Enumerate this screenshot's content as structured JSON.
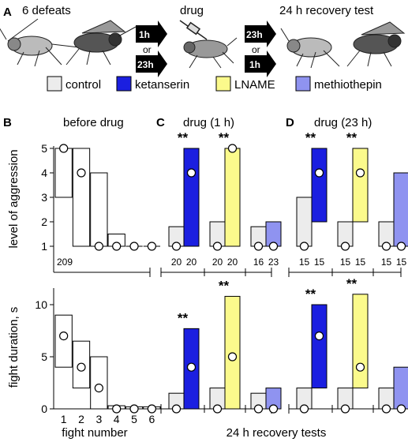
{
  "panel_a": {
    "letter": "A",
    "step1": "6 defeats",
    "step2": "drug",
    "step3": "24 h recovery test",
    "arrow1_top": "1h",
    "arrow1_bottom": "23h",
    "arrow2_top": "23h",
    "arrow2_bottom": "1h",
    "or": "or"
  },
  "legend": [
    {
      "label": "control",
      "color": "#ececec"
    },
    {
      "label": "ketanserin",
      "color": "#1b1fe0"
    },
    {
      "label": "LNAME",
      "color": "#fbfa8c"
    },
    {
      "label": "methiothepin",
      "color": "#8f93f0"
    }
  ],
  "panel_b": {
    "letter": "B",
    "title": "before drug",
    "n_label": "209"
  },
  "panel_c": {
    "letter": "C",
    "title": "drug (1 h)"
  },
  "panel_d": {
    "letter": "D",
    "title": "drug (23 h)"
  },
  "xlabel_b": "fight number",
  "xlabel_cd": "24 h recovery tests",
  "stars": "**",
  "chart_data": [
    {
      "panel": "B-top",
      "type": "bar",
      "ylabel": "level of aggression",
      "ylim": [
        0,
        5
      ],
      "categories": [
        "1",
        "2",
        "3",
        "4",
        "5",
        "6"
      ],
      "iqr_low": [
        3,
        1,
        1,
        1,
        1,
        1
      ],
      "iqr_high": [
        5,
        5,
        4,
        1.5,
        1,
        1
      ],
      "median": [
        5,
        4,
        1,
        1,
        1,
        1
      ]
    },
    {
      "panel": "B-bottom",
      "type": "bar",
      "ylabel": "fight duration, s",
      "xlabel": "fight number",
      "ylim": [
        0,
        12
      ],
      "categories": [
        "1",
        "2",
        "3",
        "4",
        "5",
        "6"
      ],
      "yticks": [
        0,
        5,
        10
      ],
      "iqr_low": [
        4,
        2,
        0,
        0,
        0,
        0
      ],
      "iqr_high": [
        9,
        6.5,
        5,
        0.3,
        0.2,
        0.2
      ],
      "median": [
        7,
        4,
        2,
        0,
        0,
        0
      ]
    },
    {
      "panel": "C-top",
      "type": "bar",
      "ylim": [
        0,
        5
      ],
      "groups": [
        {
          "n": [
            "20",
            "20"
          ],
          "sig": true,
          "bars": [
            {
              "series": "control",
              "low": 1,
              "high": 1.8,
              "median": 1
            },
            {
              "series": "ketanserin",
              "low": 1,
              "high": 5,
              "median": 4
            }
          ]
        },
        {
          "n": [
            "20",
            "20"
          ],
          "sig": true,
          "bars": [
            {
              "series": "control",
              "low": 1,
              "high": 2,
              "median": 1
            },
            {
              "series": "LNAME",
              "low": 1,
              "high": 5,
              "median": 5
            }
          ]
        },
        {
          "n": [
            "16",
            "23"
          ],
          "sig": false,
          "bars": [
            {
              "series": "control",
              "low": 1,
              "high": 1.8,
              "median": 1
            },
            {
              "series": "methiothepin",
              "low": 1,
              "high": 2,
              "median": 1
            }
          ]
        }
      ]
    },
    {
      "panel": "C-bottom",
      "type": "bar",
      "ylim": [
        0,
        12
      ],
      "groups": [
        {
          "sig": true,
          "bars": [
            {
              "series": "control",
              "low": 0,
              "high": 1.5,
              "median": 0
            },
            {
              "series": "ketanserin",
              "low": 0,
              "high": 7.7,
              "median": 4
            }
          ]
        },
        {
          "sig": true,
          "bars": [
            {
              "series": "control",
              "low": 0,
              "high": 2,
              "median": 0
            },
            {
              "series": "LNAME",
              "low": 0,
              "high": 10.8,
              "median": 5
            }
          ]
        },
        {
          "sig": false,
          "bars": [
            {
              "series": "control",
              "low": 0,
              "high": 1.5,
              "median": 0
            },
            {
              "series": "methiothepin",
              "low": 0,
              "high": 2,
              "median": 0
            }
          ]
        }
      ]
    },
    {
      "panel": "D-top",
      "type": "bar",
      "ylim": [
        0,
        5
      ],
      "groups": [
        {
          "n": [
            "15",
            "15"
          ],
          "sig": true,
          "bars": [
            {
              "series": "control",
              "low": 1,
              "high": 3,
              "median": 1
            },
            {
              "series": "ketanserin",
              "low": 2,
              "high": 5,
              "median": 4
            }
          ]
        },
        {
          "n": [
            "15",
            "15"
          ],
          "sig": true,
          "bars": [
            {
              "series": "control",
              "low": 1,
              "high": 2,
              "median": 1
            },
            {
              "series": "LNAME",
              "low": 2,
              "high": 5,
              "median": 4
            }
          ]
        },
        {
          "n": [
            "15",
            "15"
          ],
          "sig": false,
          "bars": [
            {
              "series": "control",
              "low": 1,
              "high": 2,
              "median": 1
            },
            {
              "series": "methiothepin",
              "low": 1,
              "high": 4,
              "median": 1
            }
          ]
        }
      ]
    },
    {
      "panel": "D-bottom",
      "type": "bar",
      "ylim": [
        0,
        12
      ],
      "groups": [
        {
          "sig": true,
          "bars": [
            {
              "series": "control",
              "low": 0,
              "high": 2,
              "median": 0
            },
            {
              "series": "ketanserin",
              "low": 2,
              "high": 10,
              "median": 7
            }
          ]
        },
        {
          "sig": true,
          "bars": [
            {
              "series": "control",
              "low": 0,
              "high": 2,
              "median": 0
            },
            {
              "series": "LNAME",
              "low": 2,
              "high": 11,
              "median": 4
            }
          ]
        },
        {
          "sig": false,
          "bars": [
            {
              "series": "control",
              "low": 0,
              "high": 2,
              "median": 0
            },
            {
              "series": "methiothepin",
              "low": 0,
              "high": 4,
              "median": 0
            }
          ]
        }
      ]
    }
  ]
}
